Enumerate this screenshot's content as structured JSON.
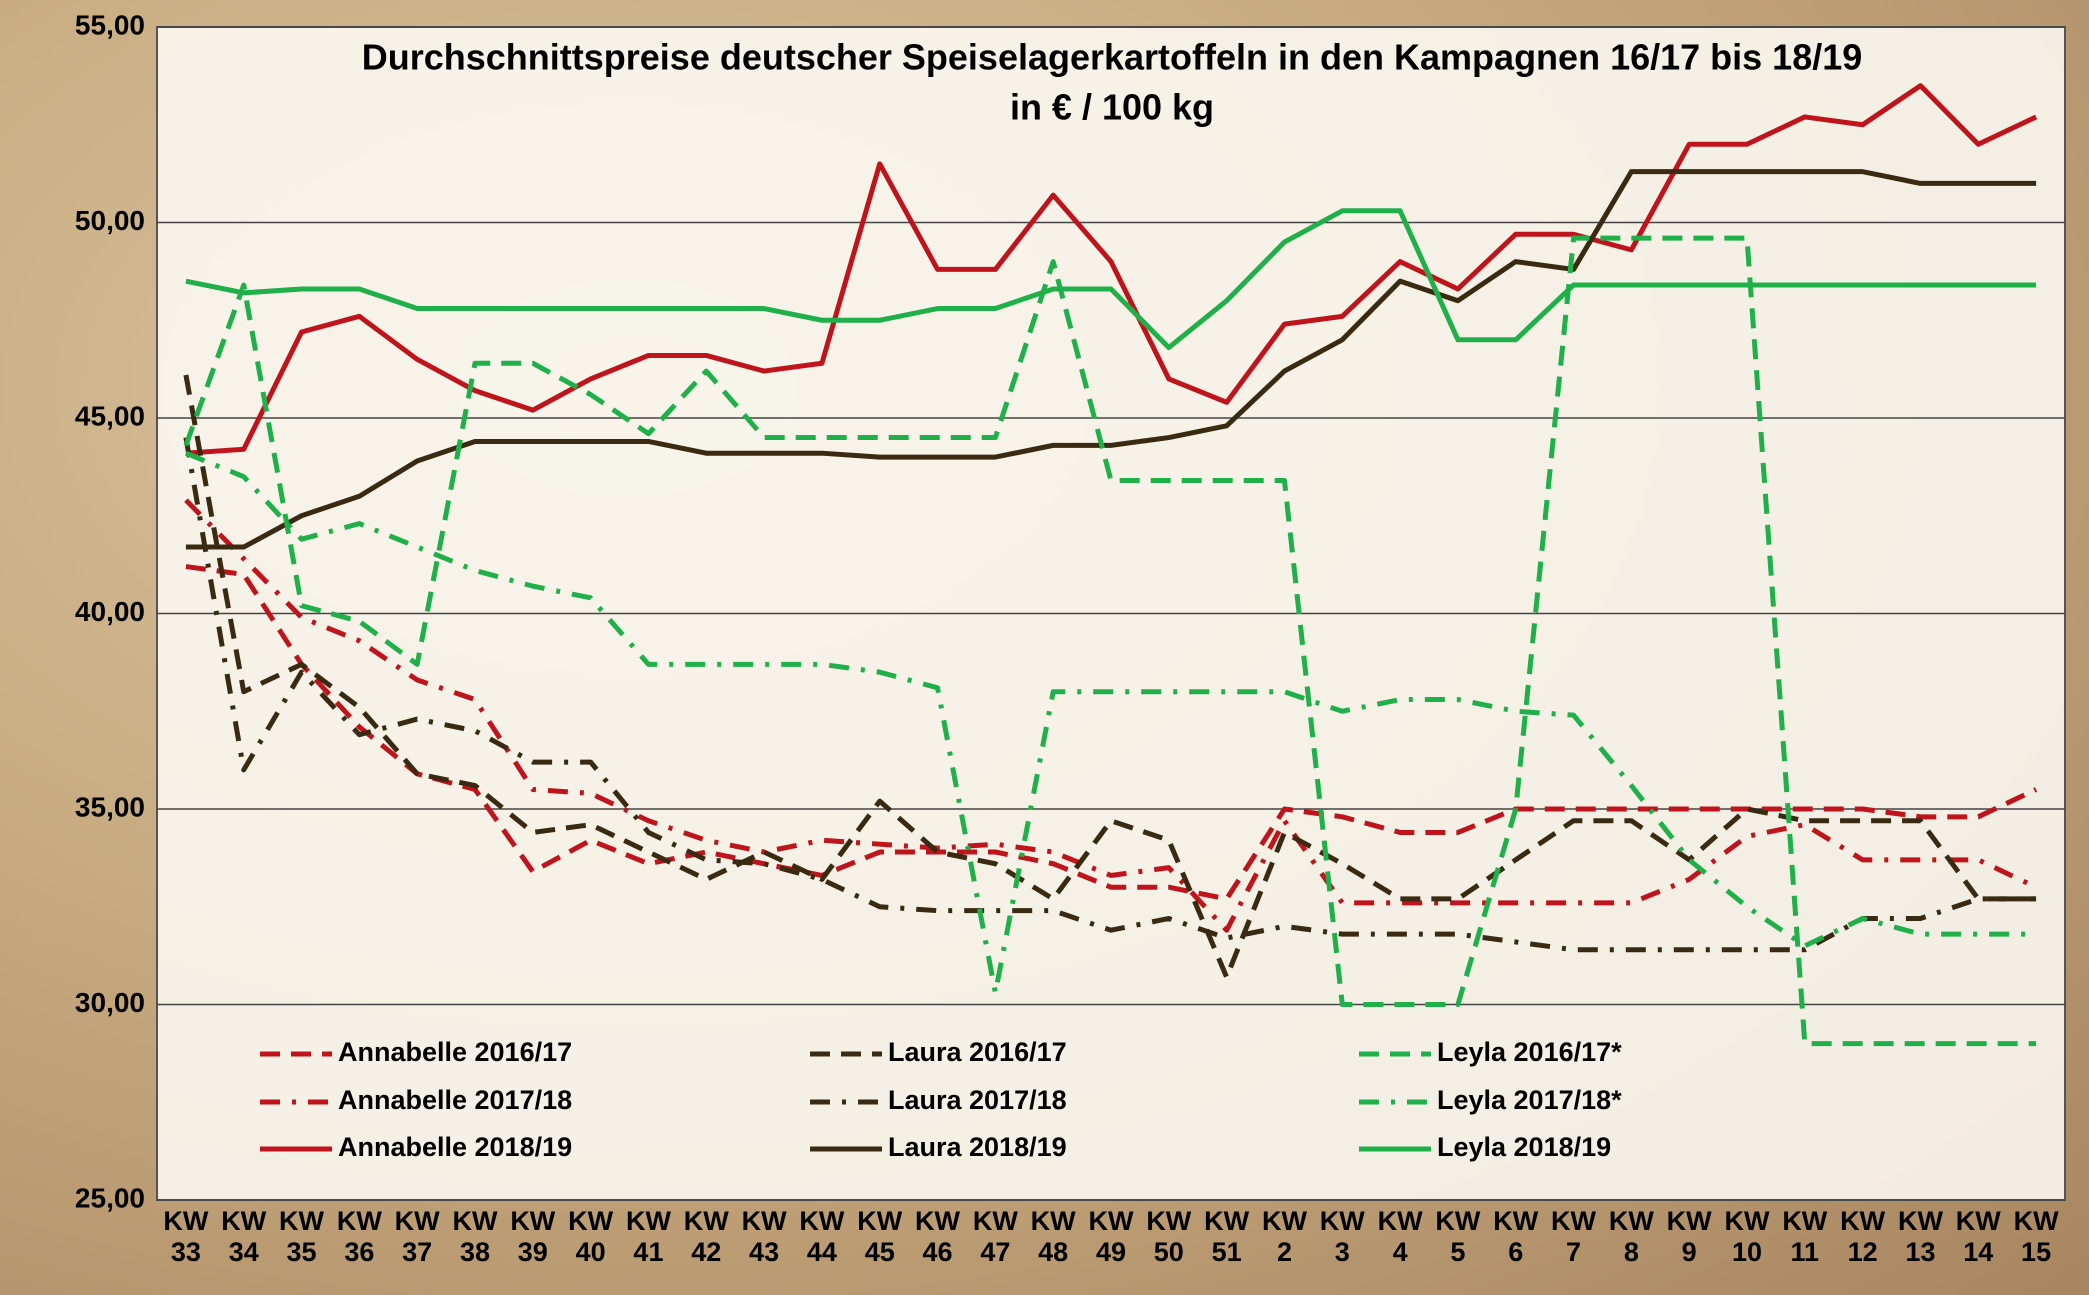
{
  "chart_data": {
    "type": "line",
    "title": "Durchschnittspreise deutscher Speiselagerkartoffeln in den Kampagnen 16/17 bis 18/19",
    "subtitle": "in € / 100 kg",
    "categories": [
      "KW 33",
      "KW 34",
      "KW 35",
      "KW 36",
      "KW 37",
      "KW 38",
      "KW 39",
      "KW 40",
      "KW 41",
      "KW 42",
      "KW 43",
      "KW 44",
      "KW 45",
      "KW 46",
      "KW 47",
      "KW 48",
      "KW 49",
      "KW 50",
      "KW 51",
      "KW 2",
      "KW 3",
      "KW 4",
      "KW 5",
      "KW 6",
      "KW 7",
      "KW 8",
      "KW 9",
      "KW 10",
      "KW 11",
      "KW 12",
      "KW 13",
      "KW 14",
      "KW 15"
    ],
    "ylim": [
      25,
      55
    ],
    "yticks": [
      {
        "value": 25,
        "label": "25,00"
      },
      {
        "value": 30,
        "label": "30,00"
      },
      {
        "value": 35,
        "label": "35,00"
      },
      {
        "value": 40,
        "label": "40,00"
      },
      {
        "value": 45,
        "label": "45,00"
      },
      {
        "value": 50,
        "label": "50,00"
      },
      {
        "value": 55,
        "label": "55,00"
      }
    ],
    "grid": true,
    "series": [
      {
        "name": "Annabelle 2016/17",
        "color": "#c0141c",
        "line_style": "dashed",
        "values": [
          41.2,
          41.0,
          38.7,
          37.1,
          35.9,
          35.5,
          33.4,
          34.2,
          33.6,
          33.9,
          33.6,
          33.3,
          33.9,
          33.9,
          33.9,
          33.6,
          33.0,
          33.0,
          32.7,
          35.0,
          34.8,
          34.4,
          34.4,
          35.0,
          35.0,
          35.0,
          35.0,
          35.0,
          35.0,
          35.0,
          34.8,
          34.8,
          35.5
        ]
      },
      {
        "name": "Annabelle 2017/18",
        "color": "#c0141c",
        "line_style": "dashdot",
        "values": [
          42.9,
          41.4,
          39.9,
          39.3,
          38.3,
          37.8,
          35.5,
          35.4,
          34.7,
          34.2,
          33.9,
          34.2,
          34.1,
          34.0,
          34.1,
          33.9,
          33.3,
          33.5,
          31.9,
          34.7,
          32.6,
          32.6,
          32.6,
          32.6,
          32.6,
          32.6,
          33.2,
          34.3,
          34.6,
          33.7,
          33.7,
          33.7,
          33.0
        ]
      },
      {
        "name": "Annabelle 2018/19",
        "color": "#c0141c",
        "line_style": "solid",
        "values": [
          44.1,
          44.2,
          47.2,
          47.6,
          46.5,
          45.7,
          45.2,
          46.0,
          46.6,
          46.6,
          46.2,
          46.4,
          51.5,
          48.8,
          48.8,
          50.7,
          49.0,
          46.0,
          45.4,
          47.4,
          47.6,
          49.0,
          48.3,
          49.7,
          49.7,
          49.3,
          52.0,
          52.0,
          52.7,
          52.5,
          53.5,
          52.0,
          52.7
        ]
      },
      {
        "name": "Laura 2016/17",
        "color": "#3a2a12",
        "line_style": "dashed",
        "values": [
          46.1,
          38.0,
          38.7,
          37.6,
          35.9,
          35.6,
          34.4,
          34.6,
          33.9,
          33.2,
          33.9,
          33.2,
          35.2,
          33.9,
          33.6,
          32.7,
          34.7,
          34.2,
          30.7,
          34.4,
          33.6,
          32.7,
          32.7,
          33.7,
          34.7,
          34.7,
          33.7,
          35.0,
          34.7,
          34.7,
          34.7,
          32.7,
          32.7
        ]
      },
      {
        "name": "Laura 2017/18",
        "color": "#3a2a12",
        "line_style": "dashdot",
        "values": [
          44.5,
          36.0,
          38.5,
          36.9,
          37.3,
          37.0,
          36.2,
          36.2,
          34.4,
          33.7,
          33.6,
          33.2,
          32.5,
          32.4,
          32.4,
          32.4,
          31.9,
          32.2,
          31.7,
          32.0,
          31.8,
          31.8,
          31.8,
          31.6,
          31.4,
          31.4,
          31.4,
          31.4,
          31.4,
          32.2,
          32.2,
          32.7,
          32.7
        ]
      },
      {
        "name": "Laura 2018/19",
        "color": "#3a2a12",
        "line_style": "solid",
        "values": [
          41.7,
          41.7,
          42.5,
          43.0,
          43.9,
          44.4,
          44.4,
          44.4,
          44.4,
          44.1,
          44.1,
          44.1,
          44.0,
          44.0,
          44.0,
          44.3,
          44.3,
          44.5,
          44.8,
          46.2,
          47.0,
          48.5,
          48.0,
          49.0,
          48.8,
          51.3,
          51.3,
          51.3,
          51.3,
          51.3,
          51.0,
          51.0,
          51.0
        ]
      },
      {
        "name": "Leyla 2016/17*",
        "color": "#1fb04a",
        "line_style": "dashed",
        "values": [
          44.3,
          48.4,
          40.2,
          39.8,
          38.7,
          46.4,
          46.4,
          45.6,
          44.6,
          46.2,
          44.5,
          44.5,
          44.5,
          44.5,
          44.5,
          49.0,
          43.4,
          43.4,
          43.4,
          43.4,
          30.0,
          30.0,
          30.0,
          35.0,
          49.6,
          49.6,
          49.6,
          49.6,
          29.0,
          29.0,
          29.0,
          29.0,
          29.0
        ]
      },
      {
        "name": "Leyla 2017/18*",
        "color": "#1fb04a",
        "line_style": "dashdot",
        "values": [
          44.1,
          43.5,
          41.9,
          42.3,
          41.7,
          41.1,
          40.7,
          40.4,
          38.7,
          38.7,
          38.7,
          38.7,
          38.5,
          38.1,
          30.3,
          38.0,
          38.0,
          38.0,
          38.0,
          38.0,
          37.5,
          37.8,
          37.8,
          37.5,
          37.4,
          35.6,
          33.7,
          32.5,
          31.5,
          32.2,
          31.8,
          31.8,
          31.8
        ]
      },
      {
        "name": "Leyla 2018/19",
        "color": "#1fb04a",
        "line_style": "solid",
        "values": [
          48.5,
          48.2,
          48.3,
          48.3,
          47.8,
          47.8,
          47.8,
          47.8,
          47.8,
          47.8,
          47.8,
          47.5,
          47.5,
          47.8,
          47.8,
          48.3,
          48.3,
          46.8,
          48.0,
          49.5,
          50.3,
          50.3,
          47.0,
          47.0,
          48.4,
          48.4,
          48.4,
          48.4,
          48.4,
          48.4,
          48.4,
          48.4,
          48.4
        ]
      }
    ]
  }
}
